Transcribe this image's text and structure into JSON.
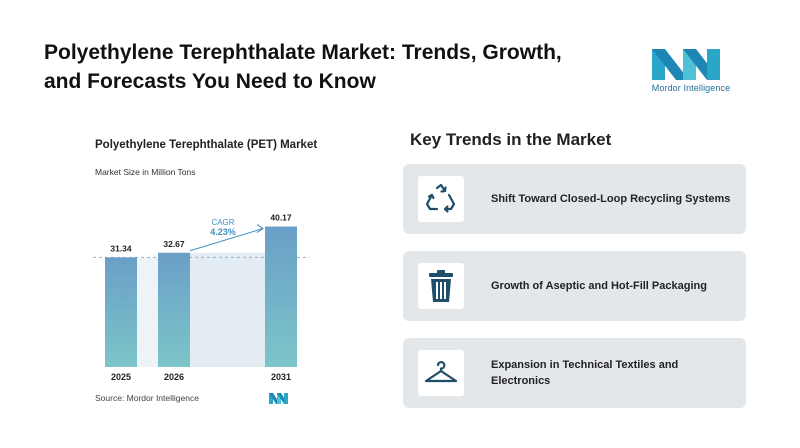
{
  "header": {
    "title": "Polyethylene Terephthalate Market: Trends, Growth, and Forecasts You Need to Know",
    "logo_text": "Mordor Intelligence"
  },
  "chart": {
    "title": "Polyethylene Terephthalate (PET) Market",
    "subtitle": "Market Size in Million Tons",
    "source": "Source: Mordor Intelligence",
    "cagr_label": "CAGR",
    "cagr_value": "4.23%"
  },
  "chart_data": {
    "type": "bar",
    "title": "Polyethylene Terephthalate (PET) Market",
    "subtitle": "Market Size in Million Tons",
    "categories": [
      "2025",
      "2026",
      "2031"
    ],
    "values": [
      31.34,
      32.67,
      40.17
    ],
    "value_labels": [
      "31.34",
      "32.67",
      "40.17"
    ],
    "annotation": "CAGR 4.23%",
    "colors": {
      "bar_top": "#6a9fc7",
      "bar_bottom": "#7cc5c9",
      "band": "#e3ecf3",
      "dash": "#8fb3cf",
      "accent": "#3f8fc2"
    }
  },
  "trends": {
    "heading": "Key Trends in the Market",
    "items": [
      {
        "icon": "recycle-icon",
        "label": "Shift Toward Closed-Loop Recycling Systems"
      },
      {
        "icon": "bin-icon",
        "label": "Growth of Aseptic and Hot-Fill Packaging"
      },
      {
        "icon": "hanger-icon",
        "label": "Expansion in Technical Textiles and Electronics"
      }
    ]
  },
  "colors": {
    "icon": "#1f4e6b",
    "card_bg": "#e4e7ea"
  }
}
